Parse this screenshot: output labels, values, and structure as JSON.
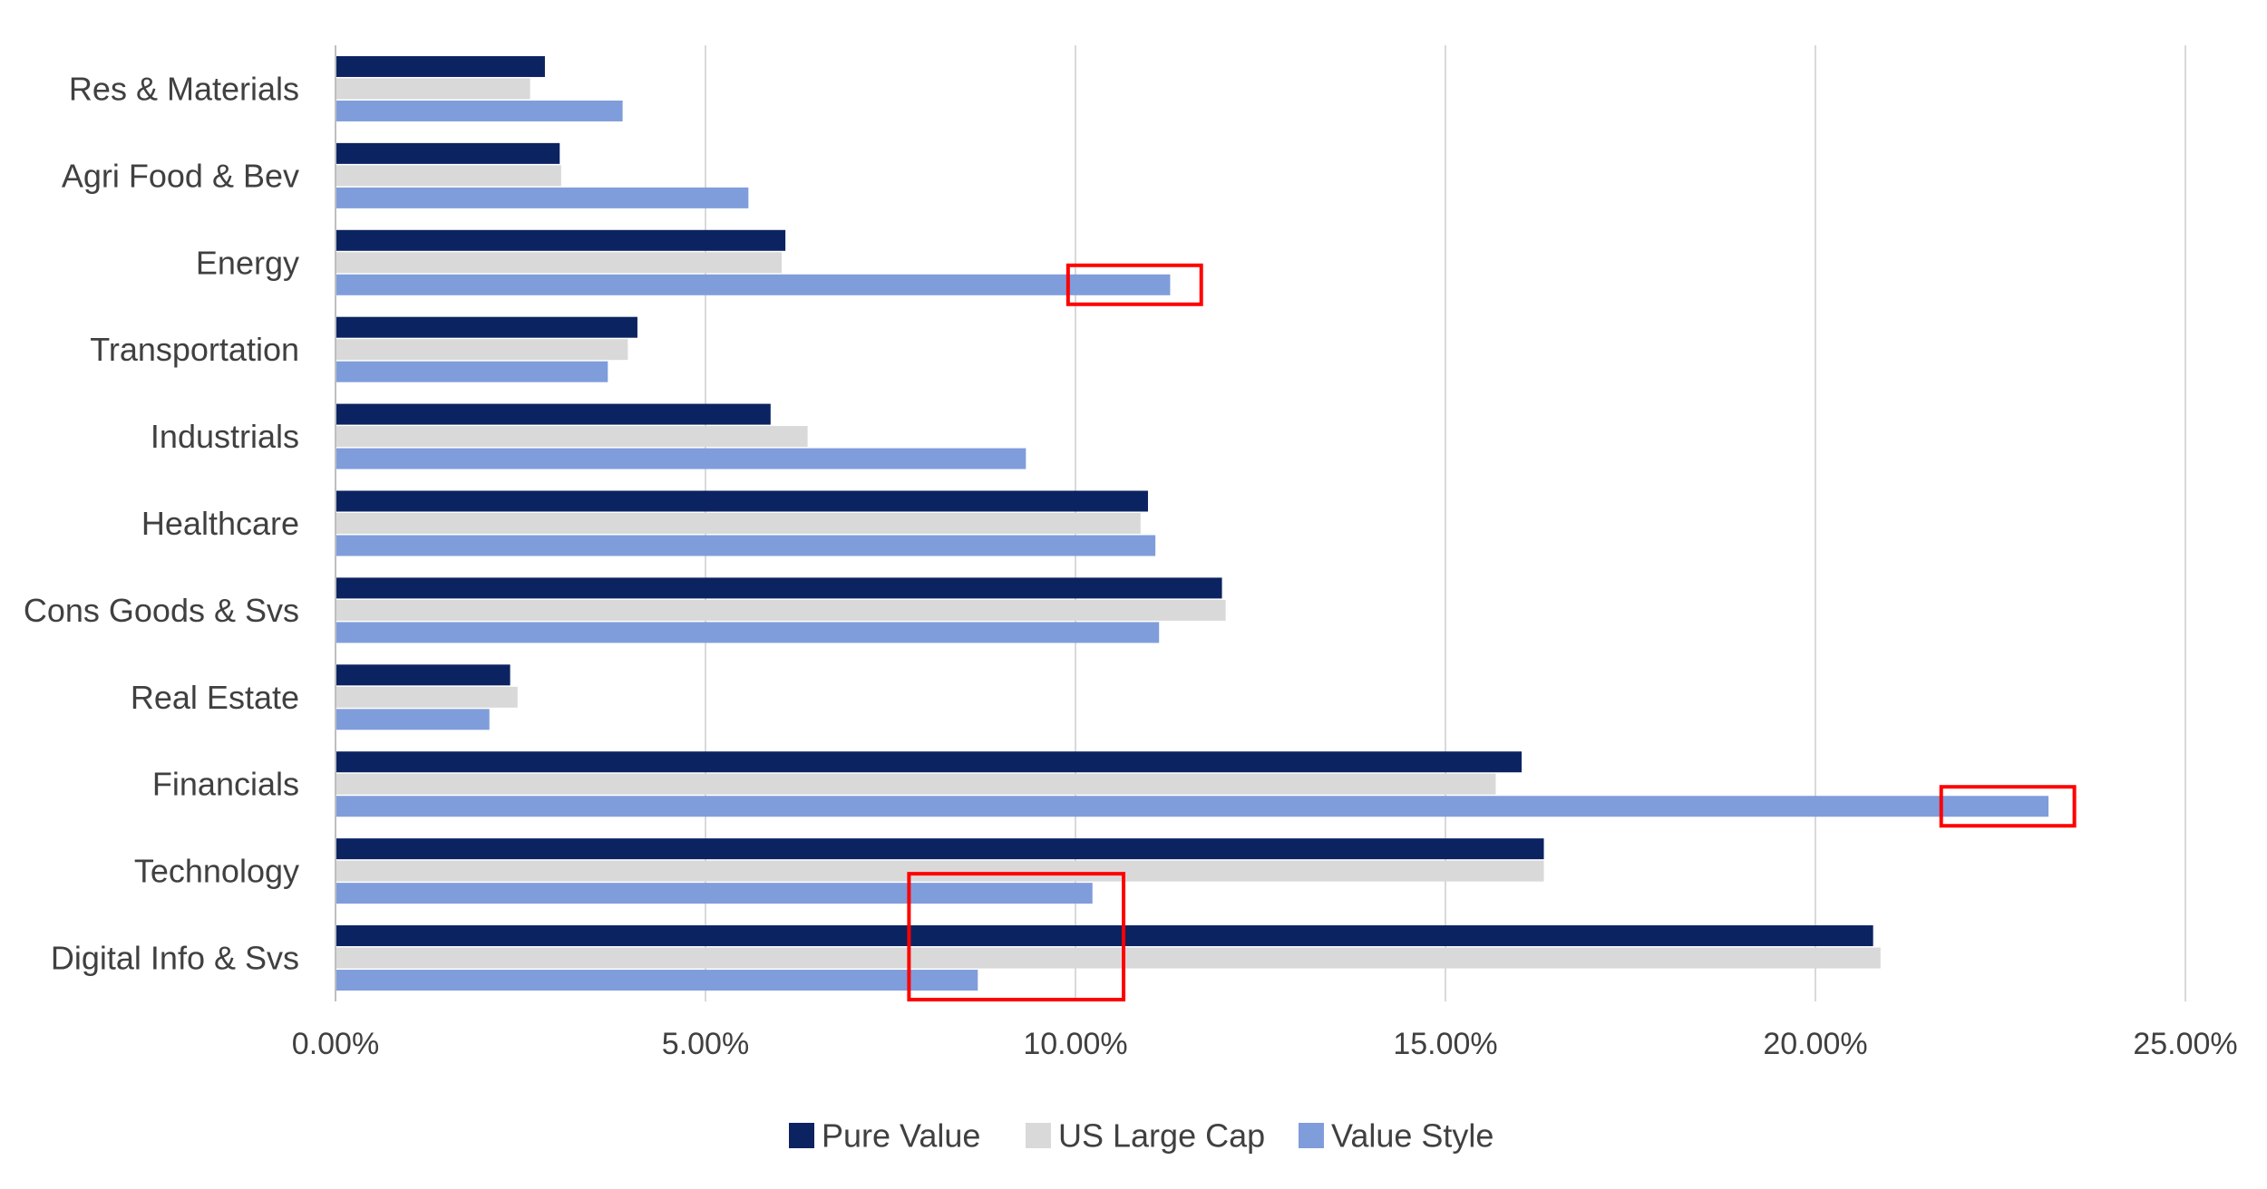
{
  "chart_data": {
    "type": "bar",
    "orientation": "horizontal",
    "categories": [
      "Res & Materials",
      "Agri Food & Bev",
      "Energy",
      "Transportation",
      "Industrials",
      "Healthcare",
      "Cons Goods & Svs",
      "Real Estate",
      "Financials",
      "Technology",
      "Digital Info & Svs"
    ],
    "series": [
      {
        "name": "Pure Value",
        "color": "#0b2361",
        "values": [
          2.83,
          3.03,
          6.08,
          4.08,
          5.88,
          10.98,
          11.98,
          2.36,
          16.03,
          16.33,
          20.78
        ]
      },
      {
        "name": "US Large Cap",
        "color": "#d9d9d9",
        "values": [
          2.63,
          3.05,
          6.03,
          3.95,
          6.38,
          10.88,
          12.03,
          2.46,
          15.68,
          16.33,
          20.88
        ]
      },
      {
        "name": "Value Style",
        "color": "#809ddb",
        "values": [
          3.88,
          5.58,
          11.28,
          3.68,
          9.33,
          11.08,
          11.13,
          2.08,
          23.15,
          10.23,
          8.68
        ]
      }
    ],
    "xlim": [
      0,
      25
    ],
    "xticks": [
      "0.00%",
      "5.00%",
      "10.00%",
      "15.00%",
      "20.00%",
      "25.00%"
    ],
    "xtick_values": [
      0,
      5,
      10,
      15,
      20,
      25
    ],
    "grid": "vertical",
    "legend_position": "bottom",
    "title": "",
    "xlabel": "",
    "ylabel": "",
    "annotations": [
      {
        "type": "box",
        "color": "#ff0000",
        "category": "Energy",
        "series": "Value Style",
        "x_range": [
          9.9,
          11.7
        ]
      },
      {
        "type": "box",
        "color": "#ff0000",
        "category": "Financials",
        "series": "Value Style",
        "x_range": [
          21.7,
          23.5
        ]
      },
      {
        "type": "box",
        "color": "#ff0000",
        "category": [
          "Technology",
          "Digital Info & Svs"
        ],
        "series": "Value Style",
        "x_range": [
          7.75,
          10.65
        ]
      }
    ]
  }
}
